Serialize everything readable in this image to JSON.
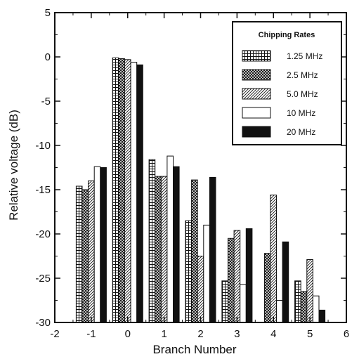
{
  "chart_data": {
    "type": "bar",
    "title": "",
    "xlabel": "Branch Number",
    "ylabel": "Relative voltage (dB)",
    "xlim": [
      -2,
      6
    ],
    "ylim": [
      -30,
      5
    ],
    "xticks": [
      "-2",
      "-1",
      "0",
      "1",
      "2",
      "3",
      "4",
      "5",
      "6"
    ],
    "yticks": [
      "5",
      "0",
      "-5",
      "-10",
      "-15",
      "-20",
      "-25",
      "-30"
    ],
    "legend_title": "Chipping Rates",
    "legend_position": "top-right",
    "grid": false,
    "x": [
      -1,
      0,
      1,
      2,
      3,
      4,
      5
    ],
    "series": [
      {
        "name": "1.25 MHz",
        "pattern": "grid",
        "values": [
          -14.6,
          -0.1,
          -11.6,
          -18.5,
          -25.3,
          null,
          -25.3
        ]
      },
      {
        "name": "2.5 MHz",
        "pattern": "crosshatch",
        "values": [
          -15.0,
          -0.2,
          -13.5,
          -13.9,
          -20.5,
          -22.2,
          -26.5
        ]
      },
      {
        "name": "5.0 MHz",
        "pattern": "diagonal",
        "values": [
          -14.0,
          -0.3,
          -13.5,
          -22.5,
          -19.6,
          -15.6,
          -22.9
        ]
      },
      {
        "name": "10 MHz",
        "pattern": "white",
        "values": [
          -12.4,
          -0.6,
          -11.2,
          -19.0,
          -25.7,
          -27.5,
          -27.0
        ]
      },
      {
        "name": "20 MHz",
        "pattern": "black",
        "values": [
          -12.5,
          -0.9,
          -12.4,
          -13.6,
          -19.4,
          -20.9,
          -28.6
        ]
      }
    ]
  }
}
